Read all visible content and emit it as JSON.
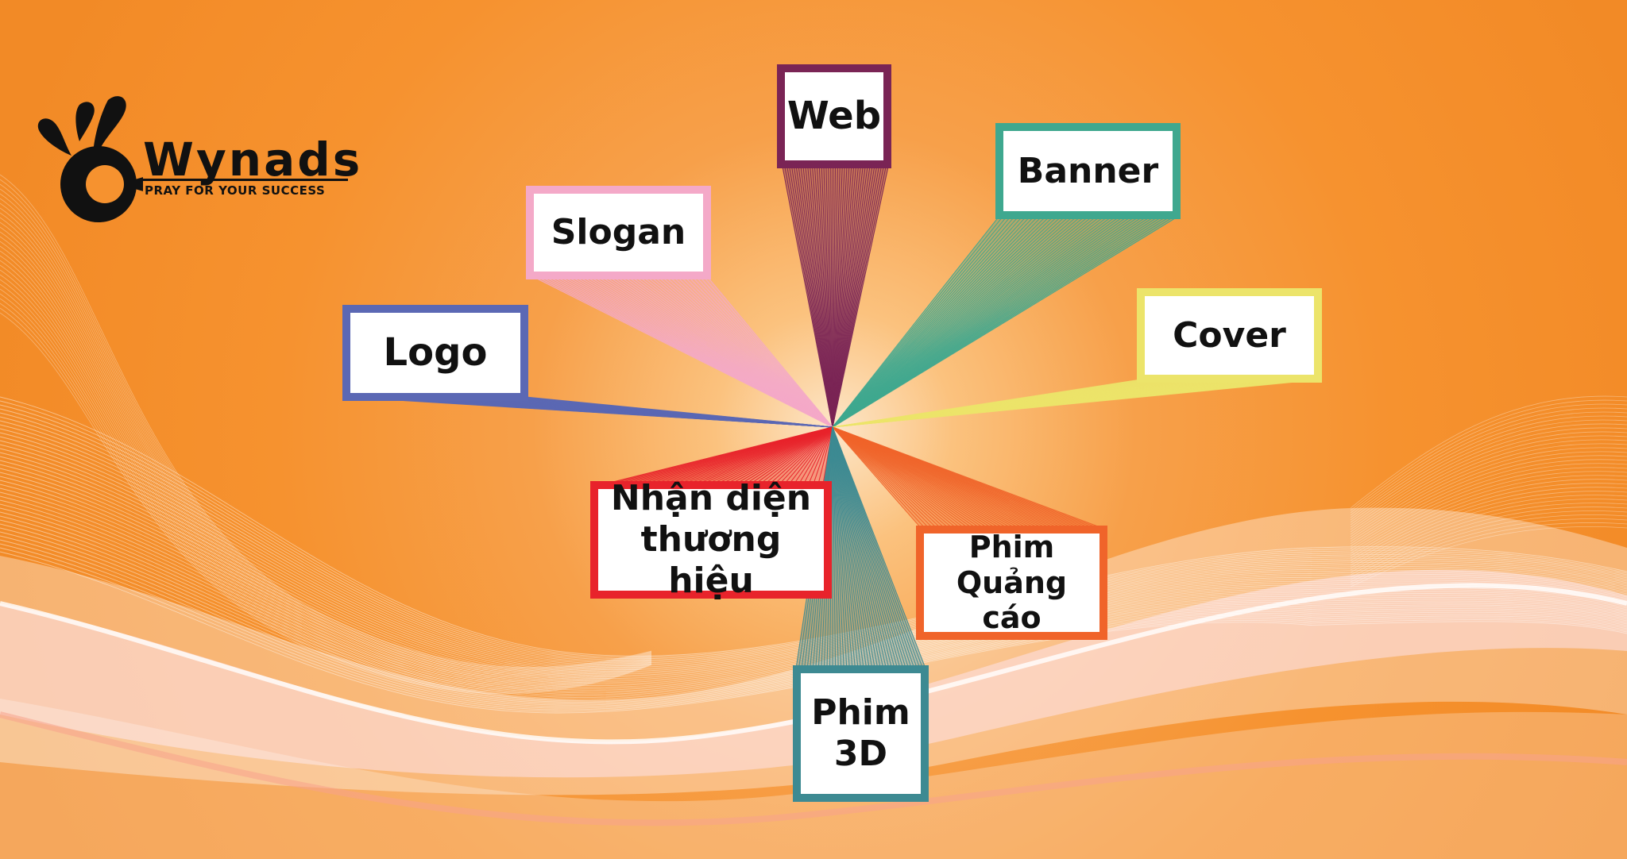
{
  "brand": {
    "name": "Wynads",
    "tagline": "PRAY FOR YOUR SUCCESS"
  },
  "nodes": [
    {
      "id": "web",
      "lines": [
        "Web"
      ],
      "color": "#7a2455"
    },
    {
      "id": "banner",
      "lines": [
        "Banner"
      ],
      "color": "#3fa88f"
    },
    {
      "id": "slogan",
      "lines": [
        "Slogan"
      ],
      "color": "#f4a9c8"
    },
    {
      "id": "cover",
      "lines": [
        "Cover"
      ],
      "color": "#ece46a"
    },
    {
      "id": "logo",
      "lines": [
        "Logo"
      ],
      "color": "#5b68b4"
    },
    {
      "id": "nhan-dien",
      "lines": [
        "Nhận diện",
        "thương hiệu"
      ],
      "color": "#e8232b"
    },
    {
      "id": "phim-quang-cao",
      "lines": [
        "Phim",
        "Quảng cáo"
      ],
      "color": "#f0642a"
    },
    {
      "id": "phim-3d",
      "lines": [
        "Phim",
        "3D"
      ],
      "color": "#3d8a92"
    }
  ],
  "colors": {
    "background": "#f6922f",
    "background_center": "#fde6c8",
    "logo": "#111111",
    "wave": "#ffffff"
  }
}
